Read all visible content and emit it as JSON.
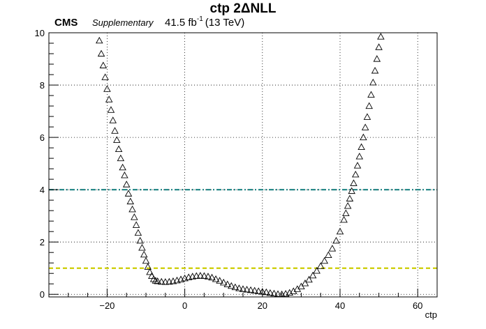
{
  "chart_data": {
    "type": "scatter",
    "title": "ctp 2ΔNLL",
    "experiment": "CMS",
    "status": "Supplementary",
    "lumi_value": "41.5 fb",
    "lumi_exponent": "-1",
    "energy": "(13 TeV)",
    "xlabel": "ctp",
    "ylabel": "",
    "xlim": [
      -35,
      65
    ],
    "ylim": [
      -0.1,
      10
    ],
    "x_ticks": [
      -20,
      0,
      20,
      40,
      60
    ],
    "y_ticks": [
      0,
      2,
      4,
      6,
      8,
      10
    ],
    "grid": true,
    "marker": "open-triangle",
    "reference_lines": [
      {
        "y": 4,
        "style": "dash-dot",
        "color": "#2a8a8a"
      },
      {
        "y": 1,
        "style": "dashed",
        "color": "#cccc00"
      }
    ],
    "points": [
      [
        -22,
        9.7
      ],
      [
        -21.5,
        9.2
      ],
      [
        -21,
        8.75
      ],
      [
        -20.5,
        8.3
      ],
      [
        -20,
        7.85
      ],
      [
        -19.5,
        7.45
      ],
      [
        -19,
        7.05
      ],
      [
        -18.5,
        6.65
      ],
      [
        -18,
        6.25
      ],
      [
        -17.5,
        5.9
      ],
      [
        -17,
        5.55
      ],
      [
        -16.5,
        5.2
      ],
      [
        -16,
        4.85
      ],
      [
        -15.5,
        4.55
      ],
      [
        -15,
        4.2
      ],
      [
        -14.5,
        3.85
      ],
      [
        -14,
        3.55
      ],
      [
        -13.5,
        3.25
      ],
      [
        -13,
        2.95
      ],
      [
        -12.5,
        2.65
      ],
      [
        -12,
        2.35
      ],
      [
        -11.5,
        2.05
      ],
      [
        -11,
        1.78
      ],
      [
        -10.5,
        1.52
      ],
      [
        -10,
        1.28
      ],
      [
        -9.5,
        1.05
      ],
      [
        -9,
        0.85
      ],
      [
        -8.5,
        0.7
      ],
      [
        -8,
        0.58
      ],
      [
        -7.5,
        0.52
      ],
      [
        -7,
        0.5
      ],
      [
        -6,
        0.48
      ],
      [
        -5,
        0.47
      ],
      [
        -4,
        0.48
      ],
      [
        -3,
        0.5
      ],
      [
        -2,
        0.53
      ],
      [
        -1,
        0.57
      ],
      [
        0,
        0.61
      ],
      [
        1,
        0.65
      ],
      [
        2,
        0.68
      ],
      [
        3,
        0.7
      ],
      [
        4,
        0.71
      ],
      [
        5,
        0.7
      ],
      [
        6,
        0.68
      ],
      [
        7,
        0.64
      ],
      [
        8,
        0.58
      ],
      [
        9,
        0.52
      ],
      [
        10,
        0.45
      ],
      [
        11,
        0.38
      ],
      [
        12,
        0.32
      ],
      [
        13,
        0.27
      ],
      [
        14,
        0.23
      ],
      [
        15,
        0.2
      ],
      [
        16,
        0.18
      ],
      [
        17,
        0.16
      ],
      [
        18,
        0.14
      ],
      [
        19,
        0.12
      ],
      [
        20,
        0.1
      ],
      [
        21,
        0.08
      ],
      [
        22,
        0.05
      ],
      [
        23,
        0.03
      ],
      [
        24,
        0.01
      ],
      [
        25,
        0
      ],
      [
        26,
        0.02
      ],
      [
        27,
        0.06
      ],
      [
        28,
        0.12
      ],
      [
        29,
        0.2
      ],
      [
        30,
        0.3
      ],
      [
        31,
        0.42
      ],
      [
        32,
        0.56
      ],
      [
        33,
        0.72
      ],
      [
        34,
        0.9
      ],
      [
        35,
        1.08
      ],
      [
        36,
        1.28
      ],
      [
        37,
        1.5
      ],
      [
        38,
        1.75
      ],
      [
        39,
        2.05
      ],
      [
        40,
        2.4
      ],
      [
        41,
        2.85
      ],
      [
        41.5,
        3.1
      ],
      [
        42,
        3.38
      ],
      [
        42.5,
        3.66
      ],
      [
        43,
        3.95
      ],
      [
        43.5,
        4.25
      ],
      [
        44,
        4.58
      ],
      [
        44.5,
        4.92
      ],
      [
        45,
        5.27
      ],
      [
        45.5,
        5.63
      ],
      [
        46,
        6.0
      ],
      [
        46.5,
        6.38
      ],
      [
        47,
        6.78
      ],
      [
        47.5,
        7.2
      ],
      [
        48,
        7.63
      ],
      [
        48.5,
        8.1
      ],
      [
        49,
        8.55
      ],
      [
        49.5,
        9.0
      ],
      [
        50,
        9.45
      ],
      [
        50.5,
        9.85
      ]
    ]
  }
}
